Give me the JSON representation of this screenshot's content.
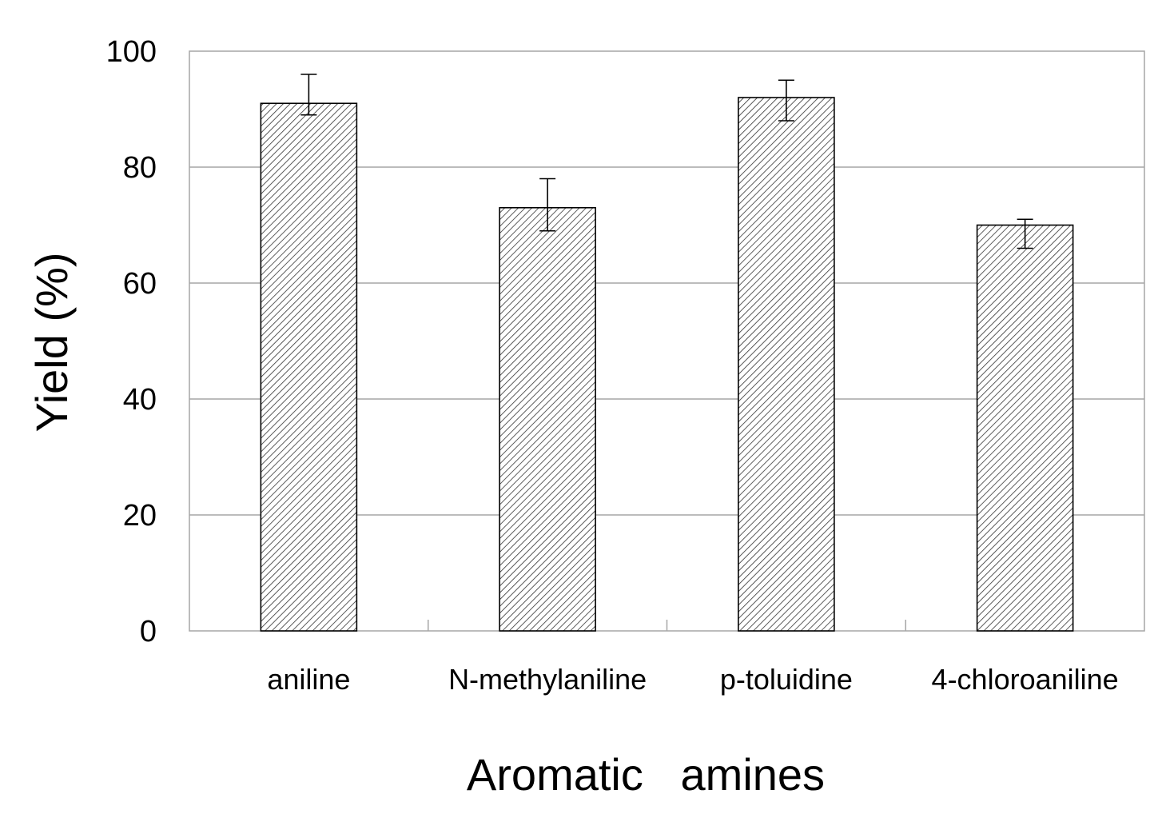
{
  "chart_data": {
    "type": "bar",
    "xlabel": "Aromatic   amines",
    "ylabel": "Yield (%)",
    "categories": [
      "aniline",
      "N-methylaniline",
      "p-toluidine",
      "4-chloroaniline"
    ],
    "series": [
      {
        "values": [
          91,
          73,
          92,
          70
        ],
        "error_low": [
          89,
          69,
          88,
          66
        ],
        "error_high": [
          96,
          78,
          95,
          71
        ]
      }
    ],
    "ylim": [
      0,
      100
    ],
    "yticks": [
      0,
      20,
      40,
      60,
      80,
      100
    ],
    "grid": "horizontal",
    "bar_fill": "diagonal-hatch",
    "colors": {
      "bar_stroke": "#000000",
      "hatch": "#333333",
      "grid": "#a6a6a6",
      "frame": "#a6a6a6"
    }
  }
}
